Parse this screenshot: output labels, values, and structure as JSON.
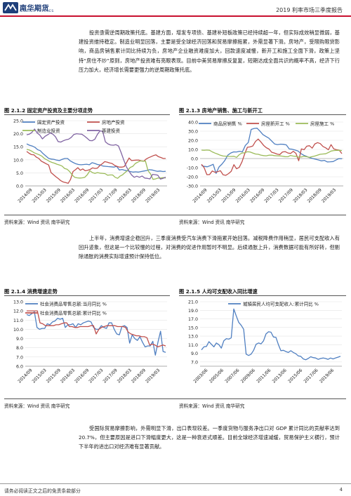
{
  "header": {
    "logo_cn": "南华期货",
    "logo_en": "NANHUA FUTURES",
    "report_title": "2019 利率市场三季度报告"
  },
  "body": {
    "para1": "投资亟需逆周期政策托底。基建方面，增发专项债、基建补短板政策已经持续超一年，但实际成效稍显微弱，基建投资维持稳定。制造业明显回落，主要是受全球经济回落和贸易摩擦拖累，外需显著下滑。房地产，受限购限贷影响，商品房销售累计同比持续为负，房地产企业融资难度加大，回款速度减慢，新开工和施工全面下滑，政策上坚持“房住不炒”原则，房地产投资难有亮眼表现。目前中美贸易摩擦反复复，短期达成全面共识的概率不高，经济下行压力加大，经济增长需要更强力的逆周期政策托底。",
    "para2": "上半年，消费增速企稳回升，三季度消费受汽车消费下滑拖累开始回落。减税降费作用稍显，居民可支配收入有回升迹象，但这是一个比较慢的过程，对消费的促进作用暂时不明显。后续通胀上升，消费数据可能有所好转，但剔除通胀的消费实际增速预计保持低位。",
    "para3": "受国际贸易摩擦影响，外需明显下滑，出口表现较差。一季度货物与服务净出口对 GDP 累计同比的贡献率达到 20.7%，但主要原因是进口下滑幅度更大，这是一种衰退式顺差。目前全球经济增速减缓，贸易保护主义横行，预计下半年的进出口对经济难有显著贡献。"
  },
  "figures": {
    "f212": {
      "title": "图 2.1.2  固定资产投资及主要分项走势",
      "source": "资料来源：Wind 资讯  南华研究"
    },
    "f213": {
      "title": "图 2.1.3  房地产销售、施工与新开工",
      "source": "资料来源：Wind 资讯  南华研究"
    },
    "f214": {
      "title": "图 2.1.4  消费增速走势",
      "source": "资料来源：Wind 资讯  南华研究"
    },
    "f215": {
      "title": "图 2.1.5  人均可支配收入同比增速",
      "source": "资料来源：Wind 资讯  南华研究"
    }
  },
  "footer": {
    "disclaimer": "请务必阅读正文之后的免责条款部分",
    "page": "4"
  },
  "chart_data": [
    {
      "type": "line",
      "ylim": [
        0,
        25
      ],
      "yticks": [
        "0.0",
        "5.0",
        "10.0",
        "15.0",
        "20.0",
        "25.0"
      ],
      "xticks": [
        "2014/09",
        "2015/03",
        "2015/09",
        "2016/03",
        "2016/09",
        "2017/03",
        "2017/09",
        "2018/03",
        "2018/09",
        "2019/03"
      ],
      "legend_position": "top-left",
      "series": [
        {
          "name": "固定资产投资",
          "color": "#4f7fc1",
          "values": [
            16.1,
            15.6,
            15.3,
            14.8,
            13.9,
            13.5,
            12.4,
            11.5,
            10.6,
            10.3,
            10.2,
            9.9,
            9.7,
            10.2,
            10.5,
            10.5,
            9.6,
            9.0,
            8.5,
            8.2,
            8.1,
            8.2,
            8.3,
            8.1,
            8.9,
            8.6,
            8.2,
            8.0,
            7.6,
            7.5,
            7.4,
            7.3,
            7.2,
            7.5,
            6.1,
            6.3,
            6.0,
            5.8,
            5.5,
            5.3,
            5.4,
            5.3,
            5.5,
            5.7,
            5.9,
            6.2,
            6.1,
            5.8,
            5.6,
            5.7,
            5.5,
            5.6
          ]
        },
        {
          "name": "房地产投资",
          "color": "#c0504d",
          "values": [
            13.2,
            12.5,
            12.0,
            11.9,
            11.0,
            10.5,
            9.5,
            9.0,
            8.5,
            8.0,
            5.1,
            4.3,
            3.5,
            2.8,
            2.0,
            1.5,
            1.3,
            1.0,
            2.5,
            5.5,
            6.2,
            7.0,
            6.0,
            6.5,
            5.8,
            6.0,
            6.3,
            6.9,
            6.7,
            6.8,
            7.8,
            8.5,
            9.3,
            9.1,
            8.8,
            8.6,
            7.9,
            7.5,
            7.2,
            7.2,
            7.4,
            9.0,
            10.7,
            9.7,
            9.8,
            9.9,
            9.9,
            9.6,
            9.5,
            10.3,
            10.8,
            11.2,
            11.6,
            11.9,
            11.2,
            10.9,
            10.5,
            10.5
          ]
        },
        {
          "name": "制造业投资",
          "color": "#9bbb59",
          "values": [
            14.0,
            13.8,
            13.3,
            12.7,
            12.3,
            11.9,
            11.4,
            10.5,
            10.0,
            9.4,
            9.0,
            8.7,
            8.3,
            8.0,
            7.6,
            6.7,
            6.4,
            5.5,
            4.2,
            3.3,
            3.1,
            3.0,
            3.1,
            3.3,
            4.3,
            5.8,
            5.1,
            4.8,
            5.1,
            4.9,
            4.8,
            4.7,
            4.1,
            4.2,
            4.2,
            3.3,
            2.9,
            3.8,
            4.3,
            5.2,
            6.0,
            7.1,
            7.5,
            8.6,
            9.1,
            9.6,
            9.5,
            9.5,
            5.9,
            4.6,
            2.5,
            2.7,
            3.0,
            3.0,
            3.2,
            3.0
          ]
        },
        {
          "name": "基建投资",
          "color": "#8064a2",
          "values": [
            19.6,
            19.8,
            20.5,
            21.8,
            20.3,
            19.5,
            18.0,
            19.0,
            19.6,
            20.3,
            19.8,
            18.8,
            17.0,
            16.8,
            17.3,
            17.7,
            17.9,
            18.6,
            19.7,
            20.0,
            19.9,
            19.8,
            19.1,
            18.3,
            17.4,
            17.3,
            17.9,
            19.8,
            21.1,
            20.9,
            16.9,
            16.1,
            15.7,
            15.6,
            15.8,
            15.3,
            12.8,
            10.0,
            7.3,
            5.7,
            4.2,
            3.3,
            3.7,
            3.3,
            3.8,
            3.0,
            2.9,
            2.7,
            4.4,
            4.3,
            4.1,
            2.6,
            2.9,
            3.4
          ]
        }
      ]
    },
    {
      "type": "line",
      "ylim": [
        -30,
        40
      ],
      "yticks": [
        "40.0",
        "30.0",
        "20.0",
        "10.0",
        "0.0",
        "-10.0",
        "-20.0",
        "-30.0"
      ],
      "xticks": [
        "2014/09",
        "2015/03",
        "2015/09",
        "2016/03",
        "2016/09",
        "2017/03",
        "2017/09",
        "2018/03",
        "2018/09",
        "2019/03"
      ],
      "legend_position": "top",
      "series": [
        {
          "name": "商品房销售 %",
          "color": "#4f7fc1",
          "values": [
            -7.6,
            -8.6,
            -9.0,
            -7.8,
            -6.3,
            -16.3,
            -9.2,
            -6.1,
            -2.1,
            3.7,
            6.1,
            7.3,
            7.2,
            8.0,
            7.4,
            14.4,
            17.6,
            31.9,
            33.0,
            33.3,
            30.1,
            26.3,
            24.3,
            22.5,
            19.2,
            16.0,
            15.3,
            15.8,
            15.6,
            15.0,
            10.5,
            10.2,
            9.3,
            8.2,
            5.5,
            3.6,
            2.3,
            0.9,
            0.1,
            -0.8,
            -1.5,
            -2.5,
            -2.0,
            -3.7,
            -3.5,
            -3.3,
            -1.6,
            -0.1,
            -0.2
          ]
        },
        {
          "name": "房屋新开工 %",
          "color": "#c0504d",
          "values": [
            -6.3,
            -10.0,
            -17.7,
            -17.5,
            -13.6,
            -15.1,
            -14.5,
            -13.3,
            -17.8,
            -18.4,
            -16.5,
            -14.0,
            -6.7,
            -11.2,
            -9.7,
            -3.6,
            5.0,
            12.4,
            12.8,
            13.8,
            18.7,
            21.4,
            18.2,
            14.5,
            11.9,
            10.4,
            6.9,
            6.1,
            4.9,
            4.3,
            7.2,
            7.6,
            6.1,
            5.6,
            8.0,
            5.7,
            -2.4,
            10.5,
            9.7,
            13.5,
            14.1,
            11.4,
            16.1,
            17.5,
            16.4,
            13.2,
            11.8,
            9.6,
            15.2,
            10.5,
            9.7,
            9.2,
            5.4
          ]
        },
        {
          "name": "房屋施工 %",
          "color": "#9bbb59",
          "values": [
            9.2,
            9.1,
            9.3,
            9.1,
            7.3,
            6.0,
            4.9,
            3.6,
            2.8,
            2.6,
            2.4,
            2.3,
            2.5,
            1.3,
            4.2,
            6.1,
            6.3,
            7.5,
            7.2,
            6.1,
            5.0,
            4.7,
            3.8,
            3.2,
            3.0,
            3.7,
            3.8,
            3.2,
            3.0,
            2.9,
            2.6,
            2.1,
            2.0,
            3.4,
            2.7,
            2.5,
            1.5,
            1.8,
            2.5,
            2.0,
            1.4,
            2.1,
            2.8,
            3.8,
            4.7,
            5.0,
            5.2,
            6.6,
            8.2,
            8.8,
            9.0,
            9.1,
            8.8
          ]
        }
      ]
    },
    {
      "type": "line",
      "ylim": [
        6,
        13
      ],
      "yticks": [
        "13.0",
        "12.0",
        "11.0",
        "10.0",
        "9.0",
        "8.0",
        "7.0",
        "6.0"
      ],
      "xticks": [
        "2014/09",
        "2015/03",
        "2015/09",
        "2016/03",
        "2016/09",
        "2017/03",
        "2017/09",
        "2018/03",
        "2018/09",
        "2019/03"
      ],
      "legend_position": "top",
      "series": [
        {
          "name": "社会消费品零售总额:当月同比 %",
          "color": "#4f7fc1",
          "values": [
            11.6,
            11.5,
            11.7,
            11.9,
            10.2,
            10.0,
            10.1,
            10.1,
            10.6,
            10.5,
            10.8,
            10.9,
            11.2,
            11.1,
            11.2,
            10.2,
            10.5,
            10.5,
            10.6,
            10.2,
            10.6,
            10.5,
            10.7,
            10.8,
            10.9,
            10.8,
            10.2,
            10.0,
            10.0,
            10.4,
            10.2,
            10.1,
            10.7,
            10.7,
            10.0,
            9.5,
            9.4,
            10.3,
            10.4,
            10.2,
            8.5,
            9.4,
            9.0,
            8.8,
            9.2,
            8.6,
            8.1,
            8.2,
            8.2,
            8.7,
            7.2,
            8.6,
            9.8,
            7.6,
            7.5
          ]
        },
        {
          "name": "社会消费品零售总额:累计同比 %",
          "color": "#c0504d",
          "values": [
            12.0,
            12.0,
            12.0,
            12.0,
            12.0,
            10.7,
            10.6,
            10.4,
            10.4,
            10.4,
            10.4,
            10.5,
            10.5,
            10.6,
            10.7,
            10.7,
            10.3,
            10.3,
            10.2,
            10.2,
            10.3,
            10.3,
            10.3,
            10.3,
            10.4,
            10.4,
            9.5,
            10.0,
            10.2,
            10.3,
            10.4,
            10.4,
            10.4,
            10.4,
            10.3,
            10.3,
            10.3,
            10.2,
            9.7,
            9.5,
            9.4,
            9.3,
            9.3,
            9.2,
            9.2,
            9.1,
            8.3,
            8.4,
            8.3,
            8.1,
            8.2,
            8.3,
            8.2
          ]
        }
      ]
    },
    {
      "type": "line",
      "ylim": [
        6,
        21
      ],
      "yticks": [
        "21.0",
        "19.0",
        "17.0",
        "15.0",
        "13.0",
        "11.0",
        "9.0",
        "7.0",
        "5.0"
      ],
      "xticks": [
        "2003/06",
        "2005/06",
        "2007/06",
        "2009/06",
        "2011/06",
        "2013/06",
        "2015/06",
        "2017/06",
        "2019/06"
      ],
      "legend_position": "top",
      "series": [
        {
          "name": "城镇居民人均可支配收入:累计同比 %",
          "color": "#4f7fc1",
          "values": [
            9.8,
            10.5,
            10.6,
            11.7,
            11.1,
            10.5,
            11.4,
            11.0,
            10.2,
            11.9,
            12.4,
            12.3,
            12.6,
            19.3,
            17.7,
            16.2,
            15.5,
            14.6,
            8.8,
            8.5,
            8.8,
            9.7,
            11.1,
            11.4,
            11.2,
            11.9,
            13.5,
            14.0,
            13.9,
            12.8,
            12.7,
            11.0,
            9.6,
            9.7,
            9.4,
            9.2,
            9.6,
            9.2,
            8.9,
            8.4,
            8.3,
            7.7,
            7.5,
            7.8,
            8.2,
            8.0,
            7.9,
            7.6,
            7.8,
            7.9,
            7.8,
            7.6,
            7.9,
            7.7,
            7.9,
            8.1,
            8.3
          ]
        }
      ]
    }
  ]
}
